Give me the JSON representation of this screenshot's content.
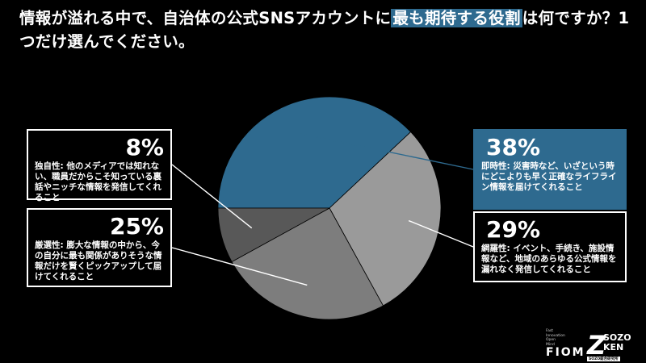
{
  "title": {
    "part1": "情報が溢れる中で、自治体の公式SNSアカウントに",
    "highlight": "最も期待する役割",
    "part2": "は何ですか？1つだけ選んでください。"
  },
  "chart_data": {
    "type": "pie",
    "slices": [
      {
        "label": "即時性",
        "value": 38,
        "display": "38%",
        "color": "#2e6a8f",
        "description": "即時性: 災害時など、いざという時にどこよりも早く正確なライフライン情報を届けてくれること"
      },
      {
        "label": "網羅性",
        "value": 29,
        "display": "29%",
        "color": "#9a9a9a",
        "description": "網羅性: イベント、手続き、施設情報など、地域のあらゆる公式情報を漏れなく発信してくれること"
      },
      {
        "label": "厳選性",
        "value": 25,
        "display": "25%",
        "color": "#7d7d7d",
        "description": "厳選性: 膨大な情報の中から、今の自分に最も関係がありそうな情報だけを賢くピックアップして届けてくれること"
      },
      {
        "label": "独自性",
        "value": 8,
        "display": "8%",
        "color": "#585858",
        "description": "独自性: 他のメディアでは知れない、職員だからこそ知っている裏話やニッチな情報を発信してくれること"
      }
    ]
  },
  "logos": {
    "fiom_small": [
      "Fast",
      "Innovation",
      "Open",
      "Mind"
    ],
    "fiom": "FIOM",
    "sozo_z": "Z",
    "sozo_line1": "SOZO",
    "sozo_line2": "KEN",
    "sozo_sub": "SOZO総合研究所"
  }
}
